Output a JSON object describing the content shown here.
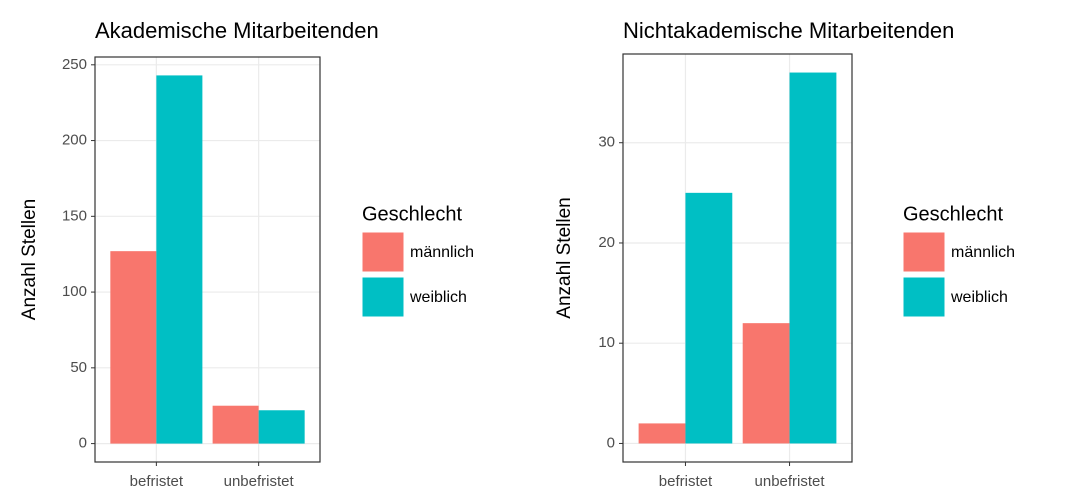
{
  "chart_data": [
    {
      "type": "bar",
      "title": "Akademische Mitarbeitenden",
      "y_label": "Anzahl Stellen",
      "legend_title": "Geschlecht",
      "categories": [
        "befristet",
        "unbefristet"
      ],
      "series": [
        {
          "name": "männlich",
          "color": "#F8766D",
          "values": [
            127,
            25
          ]
        },
        {
          "name": "weiblich",
          "color": "#00BFC4",
          "values": [
            243,
            22
          ]
        }
      ],
      "ylim": [
        -12.15,
        255.15
      ],
      "yticks": [
        0,
        50,
        100,
        150,
        200,
        250
      ],
      "grid": true,
      "legend": "right"
    },
    {
      "type": "bar",
      "title": "Nichtakademische Mitarbeitenden",
      "y_label": "Anzahl Stellen",
      "legend_title": "Geschlecht",
      "categories": [
        "befristet",
        "unbefristet"
      ],
      "series": [
        {
          "name": "männlich",
          "color": "#F8766D",
          "values": [
            2,
            12
          ]
        },
        {
          "name": "weiblich",
          "color": "#00BFC4",
          "values": [
            25,
            37
          ]
        }
      ],
      "ylim": [
        -1.85,
        38.85
      ],
      "yticks": [
        0,
        10,
        20,
        30
      ],
      "grid": true,
      "legend": "right"
    }
  ]
}
